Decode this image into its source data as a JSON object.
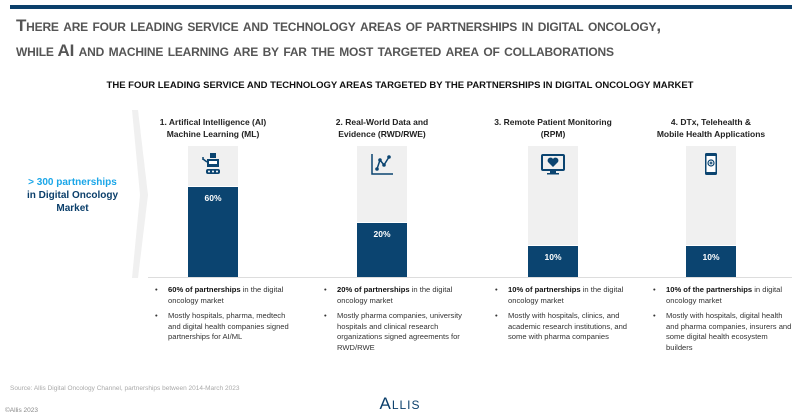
{
  "header": {
    "title_line1": "There are four leading service and technology areas of partnerships in digital oncology,",
    "title_line2": "while AI and machine learning are by far the most targeted area of collaborations",
    "subtitle": "THE FOUR LEADING SERVICE AND TECHNOLOGY AREAS TARGETED BY THE PARTNERSHIPS IN DIGITAL ONCOLOGY MARKET"
  },
  "left": {
    "highlight": "> 300 partnerships",
    "rest_line1": "in Digital Oncology",
    "rest_line2": "Market"
  },
  "columns": [
    {
      "line1": "1. Artifical Intelligence (AI)",
      "line2": "Machine Learning (ML)",
      "label": "60%",
      "icon": "robot-icon",
      "b1_bold": "60% of partnerships",
      "b1_rest": " in the digital oncology market",
      "b2": "Mostly hospitals, pharma, medtech and digital health companies signed partnerships for AI/ML"
    },
    {
      "line1": "2. Real-World Data and",
      "line2": "Evidence (RWD/RWE)",
      "label": "20%",
      "icon": "line-chart-icon",
      "b1_bold": "20% of partnerships",
      "b1_rest": " in the digital oncology market",
      "b2": "Mostly pharma companies, university hospitals and clinical research organizations signed agreements for RWD/RWE"
    },
    {
      "line1": "3. Remote Patient Monitoring",
      "line2": "(RPM)",
      "label": "10%",
      "icon": "heart-monitor-icon",
      "b1_bold": "10% of partnerships",
      "b1_rest": " in the digital oncology market",
      "b2": "Mostly with hospitals, clinics, and academic research institutions, and some with pharma companies"
    },
    {
      "line1": "4. DTx, Telehealth &",
      "line2": "Mobile Health Applications",
      "label": "10%",
      "icon": "mobile-health-icon",
      "b1_bold": "10% of the partnerships",
      "b1_rest": " in digital oncology market",
      "b2": "Mostly with hospitals, digital health and pharma companies, insurers and some digital health ecosystem builders"
    }
  ],
  "chart_data": {
    "type": "bar",
    "title": "THE FOUR LEADING SERVICE AND TECHNOLOGY AREAS TARGETED BY THE PARTNERSHIPS IN DIGITAL ONCOLOGY MARKET",
    "categories": [
      "1. Artifical Intelligence (AI) Machine Learning (ML)",
      "2. Real-World Data and Evidence (RWD/RWE)",
      "3. Remote Patient Monitoring (RPM)",
      "4. DTx, Telehealth & Mobile Health Applications"
    ],
    "values": [
      60,
      20,
      10,
      10
    ],
    "unit": "%",
    "colors": {
      "fill": "#0b4470",
      "track": "#f0f0f0"
    }
  },
  "footer": {
    "source": "Source: Allis Digital Oncology Channel, partnerships between 2014-March 2023",
    "logo": "Allis",
    "copyright": "©Allis 2023"
  }
}
